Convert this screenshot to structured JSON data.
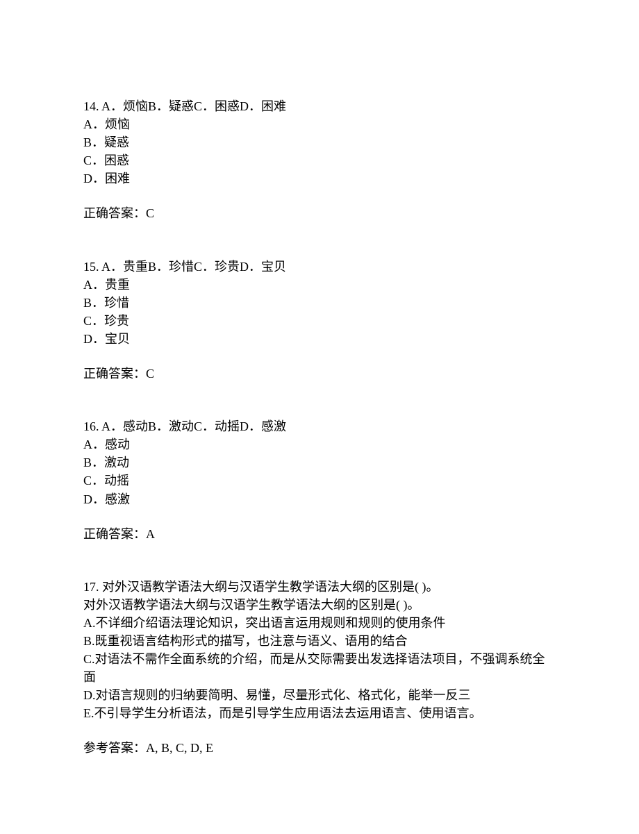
{
  "questions": [
    {
      "number": "14.",
      "stem_inline": "A．烦恼B．疑惑C．困惑D．困难",
      "options": [
        "A．烦恼",
        "B．疑惑",
        "C．困惑",
        "D．困难"
      ],
      "answer_label": "正确答案：",
      "answer_value": "C"
    },
    {
      "number": "15.",
      "stem_inline": "A．贵重B．珍惜C．珍贵D．宝贝",
      "options": [
        "A．贵重",
        "B．珍惜",
        "C．珍贵",
        "D．宝贝"
      ],
      "answer_label": "正确答案：",
      "answer_value": "C"
    },
    {
      "number": "16.",
      "stem_inline": "A．感动B．激动C．动摇D．感激",
      "options": [
        "A．感动",
        "B．激动",
        "C．动摇",
        "D．感激"
      ],
      "answer_label": "正确答案：",
      "answer_value": "A"
    },
    {
      "number": "17.",
      "stem_inline": "对外汉语教学语法大纲与汉语学生教学语法大纲的区别是(  )。",
      "stem_repeat": "对外汉语教学语法大纲与汉语学生教学语法大纲的区别是(  )。",
      "options": [
        "A.不详细介绍语法理论知识，突出语言运用规则和规则的使用条件",
        "B.既重视语言结构形式的描写，也注意与语义、语用的结合",
        "C.对语法不需作全面系统的介绍，而是从交际需要出发选择语法项目，不强调系统全面",
        "D.对语言规则的归纳要简明、易懂，尽量形式化、格式化，能举一反三",
        "E.不引导学生分析语法，而是引导学生应用语法去运用语言、使用语言。"
      ],
      "answer_label": "参考答案：",
      "answer_value": "A, B, C, D, E"
    }
  ]
}
